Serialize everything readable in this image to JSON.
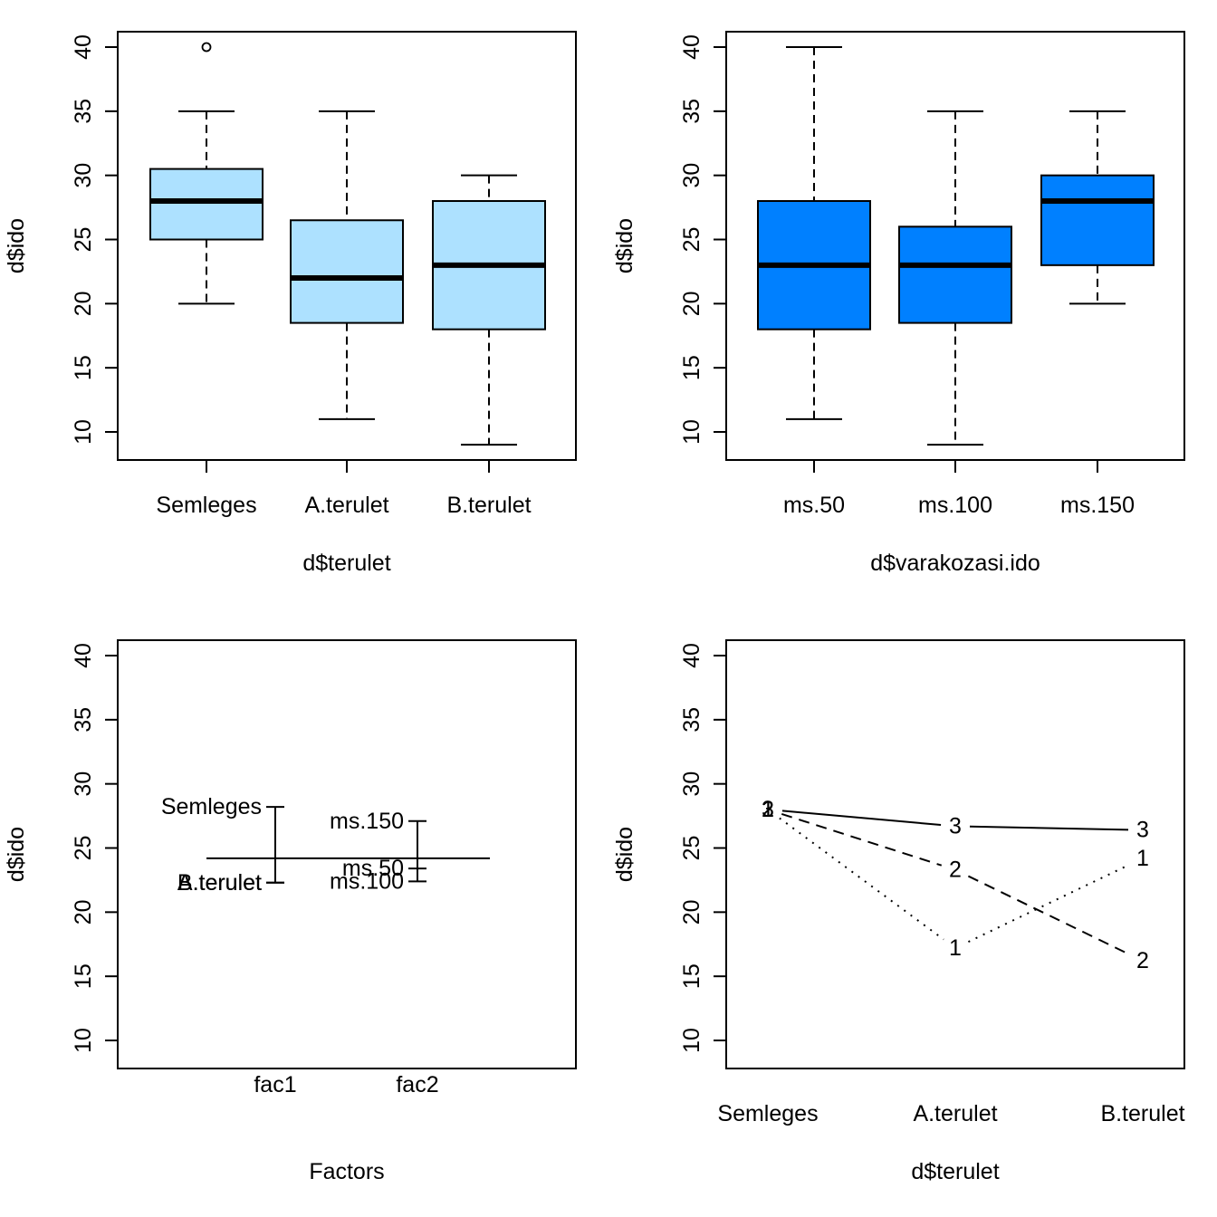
{
  "chart_data": [
    {
      "type": "boxplot",
      "title": "",
      "xlabel": "d$terulet",
      "ylabel": "d$ido",
      "ylim": [
        8,
        41.2
      ],
      "yticks": [
        10,
        15,
        20,
        25,
        30,
        35,
        40
      ],
      "fill": "#ADE1FF",
      "categories": [
        "Semleges",
        "A.terulet",
        "B.terulet"
      ],
      "boxes": [
        {
          "name": "Semleges",
          "whisker_low": 20,
          "q1": 25,
          "median": 28,
          "q3": 30.5,
          "whisker_high": 35,
          "outliers": [
            40
          ]
        },
        {
          "name": "A.terulet",
          "whisker_low": 11,
          "q1": 18.5,
          "median": 22,
          "q3": 26.5,
          "whisker_high": 35,
          "outliers": []
        },
        {
          "name": "B.terulet",
          "whisker_low": 9,
          "q1": 18,
          "median": 23,
          "q3": 28,
          "whisker_high": 30,
          "outliers": []
        }
      ]
    },
    {
      "type": "boxplot",
      "title": "",
      "xlabel": "d$varakozasi.ido",
      "ylabel": "d$ido",
      "ylim": [
        8,
        41.2
      ],
      "yticks": [
        10,
        15,
        20,
        25,
        30,
        35,
        40
      ],
      "fill": "#0080FF",
      "categories": [
        "ms.50",
        "ms.100",
        "ms.150"
      ],
      "boxes": [
        {
          "name": "ms.50",
          "whisker_low": 11,
          "q1": 18,
          "median": 23,
          "q3": 28,
          "whisker_high": 40,
          "outliers": []
        },
        {
          "name": "ms.100",
          "whisker_low": 9,
          "q1": 18.5,
          "median": 23,
          "q3": 26,
          "whisker_high": 35,
          "outliers": []
        },
        {
          "name": "ms.150",
          "whisker_low": 20,
          "q1": 23,
          "median": 28,
          "q3": 30,
          "whisker_high": 35,
          "outliers": []
        }
      ]
    },
    {
      "type": "design-plot",
      "title": "",
      "xlabel": "Factors",
      "ylabel": "d$ido",
      "ylim": [
        8,
        41.2
      ],
      "yticks": [
        10,
        15,
        20,
        25,
        30,
        35,
        40
      ],
      "grand_mean": 24.2,
      "factors": [
        {
          "name": "fac1",
          "levels": [
            {
              "label": "Semleges",
              "mean": 28.2
            },
            {
              "label": "A.terulet",
              "mean": 22.3
            },
            {
              "label": "B.terulet",
              "mean": 22.3
            }
          ]
        },
        {
          "name": "fac2",
          "levels": [
            {
              "label": "ms.150",
              "mean": 27.1
            },
            {
              "label": "ms.50",
              "mean": 23.4
            },
            {
              "label": "ms.100",
              "mean": 22.4
            }
          ]
        }
      ]
    },
    {
      "type": "line",
      "subtype": "interaction-plot",
      "title": "",
      "xlabel": "d$terulet",
      "ylabel": "d$ido",
      "ylim": [
        8,
        41.2
      ],
      "yticks": [
        10,
        15,
        20,
        25,
        30,
        35,
        40
      ],
      "categories": [
        "Semleges",
        "A.terulet",
        "B.terulet"
      ],
      "series": [
        {
          "name": "1",
          "linestyle": "dotted",
          "values": [
            28,
            17.2,
            24.2
          ]
        },
        {
          "name": "2",
          "linestyle": "dashed",
          "values": [
            28,
            23.3,
            16.2
          ]
        },
        {
          "name": "3",
          "linestyle": "solid",
          "values": [
            28,
            26.7,
            26.4
          ]
        }
      ]
    }
  ]
}
